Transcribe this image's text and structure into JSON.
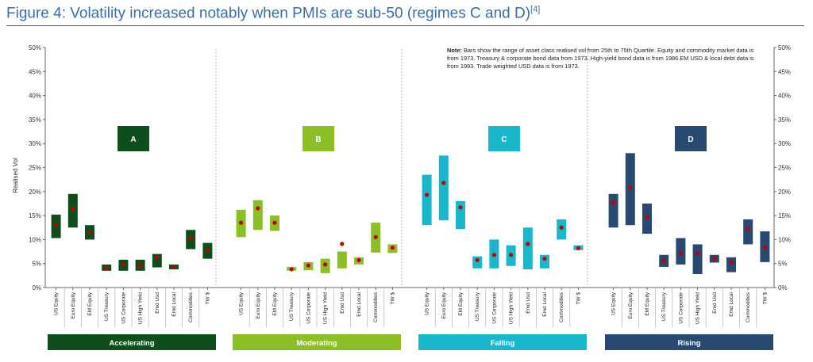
{
  "figure": {
    "title": "Figure 4: Volatility increased notably when PMIs are sub-50 (regimes C and D)",
    "ref": "[4]"
  },
  "note": {
    "label": "Note:",
    "text": "Bars show the range of asset class realised vol from 25th to 75th Quartile. Equity and commodity market data is from 1973. Treasury & corporate bond data from 1973. High-yield bond data is from 1986.EM USD & local debt data is from 1993. Trade weighted USD data is from 1973."
  },
  "colors": {
    "A": "#0e4d1c",
    "B": "#8cbf26",
    "C": "#18b7cb",
    "D": "#284a70",
    "median": "#c00000"
  },
  "chart_data": {
    "type": "bar",
    "ylabel": "Realised Vol",
    "ylim": [
      0,
      50
    ],
    "yticks": [
      "0%",
      "5%",
      "10%",
      "15%",
      "20%",
      "25%",
      "30%",
      "35%",
      "40%",
      "45%",
      "50%"
    ],
    "categories": [
      "US Equity",
      "Euro Equity",
      "EM Equity",
      "US Treasury",
      "US Corporate",
      "US High Yield",
      "Emd Usd",
      "Emd Local",
      "Commodities",
      "TW $"
    ],
    "series": [
      {
        "regime": "A",
        "name": "Accelerating",
        "low": [
          10.3,
          12.5,
          10.0,
          3.5,
          3.5,
          3.5,
          4.2,
          3.8,
          8.0,
          6.0
        ],
        "high": [
          15.2,
          19.5,
          13.0,
          4.8,
          5.8,
          5.8,
          7.0,
          4.8,
          12.0,
          9.3
        ],
        "median": [
          13.0,
          16.3,
          11.5,
          4.0,
          4.8,
          4.5,
          6.3,
          4.3,
          10.2,
          7.8
        ]
      },
      {
        "regime": "B",
        "name": "Moderating",
        "low": [
          10.5,
          12.0,
          11.8,
          3.5,
          3.6,
          3.0,
          4.0,
          4.8,
          7.3,
          7.2
        ],
        "high": [
          16.2,
          18.2,
          15.0,
          4.3,
          5.3,
          6.0,
          7.5,
          6.3,
          13.5,
          9.0
        ],
        "median": [
          13.5,
          16.5,
          13.5,
          3.8,
          4.6,
          4.8,
          9.1,
          5.7,
          10.5,
          8.3
        ]
      },
      {
        "regime": "C",
        "name": "Falling",
        "low": [
          13.0,
          14.0,
          12.2,
          4.0,
          4.0,
          4.5,
          3.8,
          4.0,
          10.0,
          7.8
        ],
        "high": [
          23.5,
          27.5,
          18.0,
          6.5,
          10.0,
          8.8,
          12.5,
          6.8,
          14.2,
          8.8
        ],
        "median": [
          19.3,
          21.8,
          16.7,
          5.7,
          6.8,
          6.8,
          9.1,
          6.0,
          12.5,
          8.2
        ]
      },
      {
        "regime": "D",
        "name": "Rising",
        "low": [
          12.5,
          13.0,
          11.2,
          4.3,
          4.8,
          2.8,
          5.2,
          3.2,
          9.0,
          5.3
        ],
        "high": [
          19.5,
          28.0,
          17.5,
          6.8,
          10.3,
          9.0,
          6.8,
          6.3,
          14.2,
          11.7
        ],
        "median": [
          17.7,
          20.8,
          14.7,
          5.6,
          7.1,
          7.1,
          6.0,
          5.3,
          12.2,
          8.3
        ]
      }
    ],
    "grid": false,
    "legend": "none"
  }
}
